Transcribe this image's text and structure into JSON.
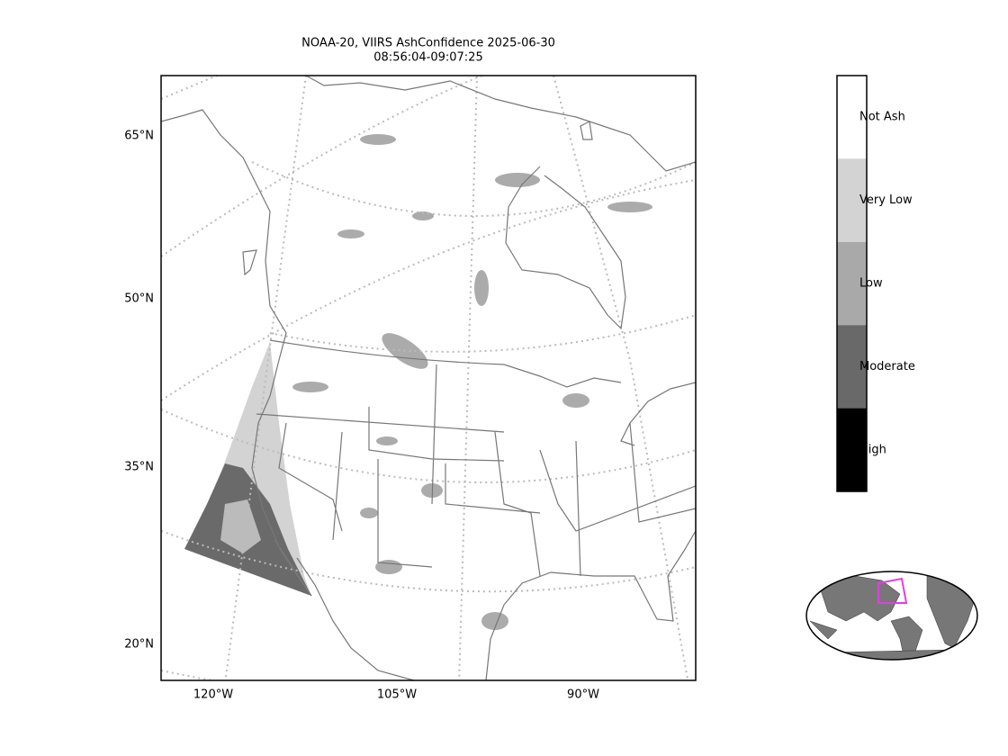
{
  "title_lines": [
    "NOAA-20, VIIRS AshConfidence 2025-06-30",
    "08:56:04-09:07:25"
  ],
  "lat_labels": [
    "65°N",
    "50°N",
    "35°N",
    "20°N"
  ],
  "lon_labels": [
    "120°W",
    "105°W",
    "90°W"
  ],
  "colorbar": [
    {
      "label": "Not Ash",
      "color": "#ffffff"
    },
    {
      "label": "Very Low",
      "color": "#d3d3d3"
    },
    {
      "label": "Low",
      "color": "#a9a9a9"
    },
    {
      "label": "Moderate",
      "color": "#696969"
    },
    {
      "label": "High",
      "color": "#000000"
    }
  ]
}
